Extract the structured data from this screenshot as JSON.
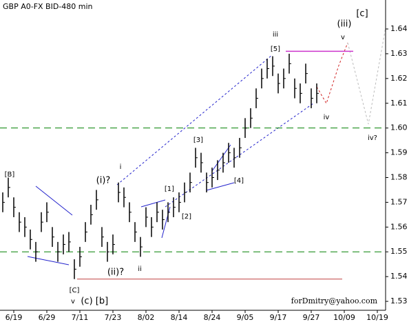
{
  "chart_data": {
    "type": "ohlc",
    "title": "GBP A0-FX BID-480 min",
    "watermark": "forDmitry@yahoo.com",
    "color": "#000000",
    "xlim": [
      0,
      140
    ],
    "ylim": [
      1.5264,
      1.6517
    ],
    "xticks": [
      {
        "value": 5,
        "label": "6/19"
      },
      {
        "value": 17,
        "label": "6/29"
      },
      {
        "value": 29,
        "label": "7/11"
      },
      {
        "value": 41,
        "label": "7/23"
      },
      {
        "value": 53,
        "label": "8/02"
      },
      {
        "value": 65,
        "label": "8/14"
      },
      {
        "value": 77,
        "label": "8/24"
      },
      {
        "value": 89,
        "label": "9/05"
      },
      {
        "value": 101,
        "label": "9/17"
      },
      {
        "value": 113,
        "label": "9/27"
      },
      {
        "value": 125,
        "label": "10/09"
      },
      {
        "value": 137,
        "label": "10/19"
      }
    ],
    "yticks": [
      1.53,
      1.54,
      1.55,
      1.56,
      1.57,
      1.58,
      1.59,
      {
        "value": 1.6,
        "label": "1.60"
      },
      1.61,
      1.62,
      1.63,
      1.64
    ],
    "x": [
      1,
      3,
      5,
      7,
      9,
      11,
      13,
      15,
      17,
      19,
      21,
      23,
      25,
      27,
      29,
      31,
      33,
      35,
      37,
      39,
      41,
      43,
      45,
      47,
      49,
      51,
      53,
      55,
      57,
      59,
      61,
      63,
      65,
      67,
      69,
      71,
      73,
      75,
      77,
      79,
      81,
      83,
      85,
      87,
      89,
      91,
      93,
      95,
      97,
      99,
      101,
      103,
      105,
      107,
      109,
      111,
      113,
      115
    ],
    "high": [
      1.574,
      1.58,
      1.572,
      1.566,
      1.564,
      1.559,
      1.554,
      1.566,
      1.57,
      1.56,
      1.554,
      1.557,
      1.558,
      1.547,
      1.552,
      1.562,
      1.569,
      1.575,
      1.56,
      1.554,
      1.557,
      1.578,
      1.576,
      1.57,
      1.562,
      1.556,
      1.568,
      1.564,
      1.57,
      1.567,
      1.57,
      1.572,
      1.574,
      1.578,
      1.582,
      1.592,
      1.59,
      1.582,
      1.584,
      1.587,
      1.59,
      1.594,
      1.592,
      1.596,
      1.604,
      1.608,
      1.616,
      1.624,
      1.628,
      1.629,
      1.622,
      1.624,
      1.63,
      1.62,
      1.618,
      1.626,
      1.616,
      1.618
    ],
    "low": [
      1.566,
      1.572,
      1.564,
      1.558,
      1.556,
      1.551,
      1.546,
      1.558,
      1.562,
      1.552,
      1.546,
      1.549,
      1.55,
      1.539,
      1.544,
      1.554,
      1.561,
      1.567,
      1.552,
      1.546,
      1.549,
      1.57,
      1.568,
      1.562,
      1.554,
      1.548,
      1.56,
      1.556,
      1.562,
      1.559,
      1.562,
      1.564,
      1.566,
      1.57,
      1.574,
      1.584,
      1.582,
      1.574,
      1.576,
      1.579,
      1.582,
      1.586,
      1.584,
      1.588,
      1.596,
      1.6,
      1.608,
      1.616,
      1.62,
      1.621,
      1.614,
      1.616,
      1.622,
      1.612,
      1.61,
      1.618,
      1.608,
      1.61
    ],
    "close": [
      1.57,
      1.576,
      1.568,
      1.562,
      1.56,
      1.555,
      1.55,
      1.562,
      1.566,
      1.556,
      1.55,
      1.553,
      1.554,
      1.543,
      1.548,
      1.558,
      1.565,
      1.571,
      1.556,
      1.55,
      1.553,
      1.574,
      1.572,
      1.566,
      1.558,
      1.552,
      1.564,
      1.56,
      1.566,
      1.563,
      1.566,
      1.568,
      1.57,
      1.574,
      1.578,
      1.588,
      1.586,
      1.578,
      1.58,
      1.583,
      1.586,
      1.59,
      1.588,
      1.592,
      1.6,
      1.604,
      1.612,
      1.62,
      1.624,
      1.625,
      1.618,
      1.62,
      1.626,
      1.616,
      1.614,
      1.622,
      1.612,
      1.614
    ],
    "levels": [
      {
        "value": 1.6,
        "color": "#008000"
      },
      {
        "value": 1.55,
        "color": "#008000"
      }
    ],
    "support": {
      "value": 1.539,
      "color": "#c04040"
    },
    "resistance": {
      "value": 1.631,
      "color": "#cc33cc"
    },
    "annotations": [
      {
        "text": "[B]",
        "color": "#008000"
      },
      {
        "text": "[C]",
        "color": "#008000"
      },
      {
        "text": "v",
        "color": "#a0302a"
      },
      {
        "text": "(c)",
        "color": "#800080"
      },
      {
        "text": "[b]",
        "color": "#008000"
      },
      {
        "text": "(i)?",
        "color": "#800080"
      },
      {
        "text": "(ii)?",
        "color": "#800080"
      },
      {
        "text": "i",
        "color": "#a0302a"
      },
      {
        "text": "ii",
        "color": "#a0302a"
      },
      {
        "text": "[1]",
        "color": "#008000"
      },
      {
        "text": "[2]",
        "color": "#008000"
      },
      {
        "text": "[3]",
        "color": "#008000"
      },
      {
        "text": "[4]",
        "color": "#008000"
      },
      {
        "text": "[5]",
        "color": "#008000"
      },
      {
        "text": "iii",
        "color": "#a0302a"
      },
      {
        "text": "iv",
        "color": "#a0302a"
      },
      {
        "text": "(iii)",
        "color": "#800080"
      },
      {
        "text": "v",
        "color": "#a0302a"
      },
      {
        "text": "[c]",
        "color": "#008000"
      },
      {
        "text": "iv?",
        "color": "#aaaaaa"
      }
    ]
  }
}
